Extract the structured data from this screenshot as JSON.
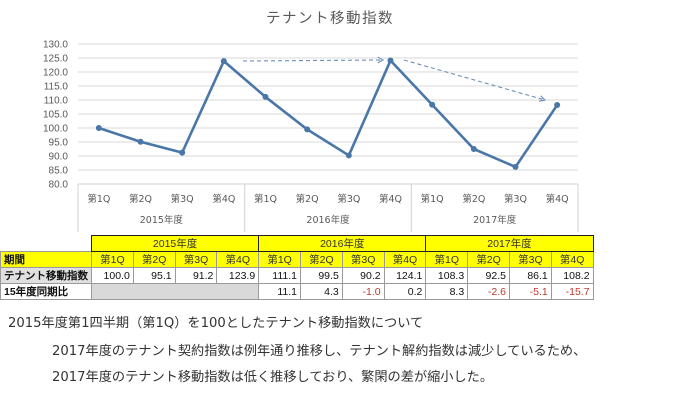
{
  "chart_data": {
    "type": "line",
    "title": "テナント移動指数",
    "xlabel": "",
    "ylabel": "",
    "ylim": [
      80.0,
      130.0
    ],
    "yticks": [
      "130.0",
      "125.0",
      "120.0",
      "115.0",
      "110.0",
      "105.0",
      "100.0",
      "95.0",
      "90.0",
      "85.0",
      "80.0"
    ],
    "grid": true,
    "legend": "none",
    "categories": [
      "第1Q",
      "第2Q",
      "第3Q",
      "第4Q",
      "第1Q",
      "第2Q",
      "第3Q",
      "第4Q",
      "第1Q",
      "第2Q",
      "第3Q",
      "第4Q"
    ],
    "groups": [
      "2015年度",
      "2016年度",
      "2017年度"
    ],
    "series": [
      {
        "name": "テナント移動指数",
        "values": [
          100.0,
          95.1,
          91.2,
          123.9,
          111.1,
          99.5,
          90.2,
          124.1,
          108.3,
          92.5,
          86.1,
          108.2
        ],
        "color": "#4a76a8"
      }
    ],
    "annotations": [
      {
        "type": "dashed-arrow",
        "from": "2015 第4Q",
        "to": "2016 第4Q"
      },
      {
        "type": "dashed-arrow",
        "from": "2016 第4Q",
        "to": "2017 第4Q"
      }
    ]
  },
  "table": {
    "years": [
      "2015年度",
      "2016年度",
      "2017年度"
    ],
    "period_label": "期間",
    "quarters": [
      "第1Q",
      "第2Q",
      "第3Q",
      "第4Q",
      "第1Q",
      "第2Q",
      "第3Q",
      "第4Q",
      "第1Q",
      "第2Q",
      "第3Q",
      "第4Q"
    ],
    "index_label": "テナント移動指数",
    "index_values": [
      "100.0",
      "95.1",
      "91.2",
      "123.9",
      "111.1",
      "99.5",
      "90.2",
      "124.1",
      "108.3",
      "92.5",
      "86.1",
      "108.2"
    ],
    "yoy_label": "15年度同期比",
    "yoy_values": [
      "",
      "",
      "",
      "",
      "11.1",
      "4.3",
      "-1.0",
      "0.2",
      "8.3",
      "-2.6",
      "-5.1",
      "-15.7"
    ]
  },
  "notes": {
    "line1": "2015年度第1四半期（第1Q）を100としたテナント移動指数について",
    "line2": "2017年度のテナント契約指数は例年通り推移し、テナント解約指数は減少しているため、",
    "line3": "2017年度のテナント移動指数は低く推移しており、繁閑の差が縮小した。"
  },
  "colors": {
    "line": "#4a76a8",
    "grid": "#d9d9d9",
    "table_header": "#ffff00",
    "negative": "#c0392b"
  }
}
